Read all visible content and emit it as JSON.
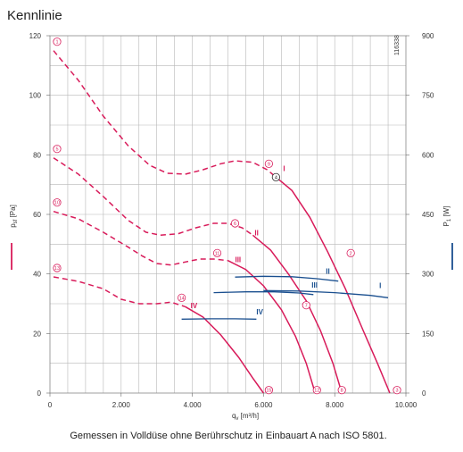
{
  "title": "Kennlinie",
  "caption": "Gemessen in Volldüse ohne Berührschutz in Einbauart A nach ISO 5801.",
  "id_number": "116338",
  "colors": {
    "pressure": "#d81b5a",
    "power": "#1a4f8f",
    "grid": "#b8b8b8",
    "marker": "#d81b5a"
  },
  "chart_data": {
    "type": "line",
    "grid": true,
    "x_axis": {
      "label_main": "q",
      "label_sub": "v",
      "label_unit": "[m³/h]",
      "range": [
        0,
        10000
      ],
      "ticks": [
        0,
        2000,
        4000,
        6000,
        8000,
        10000
      ],
      "tick_labels": [
        "0",
        "2.000",
        "4.000",
        "6.000",
        "8.000",
        "10.000"
      ]
    },
    "y_left": {
      "label_main": "p",
      "label_sub": "sf",
      "label_unit": "[Pa]",
      "range": [
        0,
        120
      ],
      "ticks": [
        0,
        20,
        40,
        60,
        80,
        100,
        120
      ],
      "tick_labels": [
        "0",
        "20",
        "40",
        "60",
        "80",
        "100",
        "120"
      ]
    },
    "y_right": {
      "label_main": "P",
      "label_sub": "1",
      "label_unit": "[W]",
      "range": [
        0,
        900
      ],
      "ticks": [
        0,
        150,
        300,
        450,
        600,
        750,
        900
      ],
      "tick_labels": [
        "0",
        "150",
        "300",
        "450",
        "600",
        "750",
        "900"
      ]
    },
    "pressure_curves": [
      {
        "name": "I",
        "label_x": 6550,
        "label_y": 74.5,
        "dashed": [
          [
            100,
            115
          ],
          [
            800,
            105
          ],
          [
            1500,
            93
          ],
          [
            2200,
            83
          ],
          [
            2800,
            76.5
          ],
          [
            3300,
            73.8
          ],
          [
            3800,
            73.5
          ],
          [
            4300,
            75
          ],
          [
            4800,
            77
          ],
          [
            5200,
            78
          ],
          [
            5700,
            77.5
          ],
          [
            6100,
            75
          ],
          [
            6350,
            72.5
          ]
        ],
        "solid": [
          [
            6350,
            72.5
          ],
          [
            6800,
            68
          ],
          [
            7300,
            59
          ],
          [
            7800,
            47.5
          ],
          [
            8300,
            35
          ],
          [
            8800,
            21
          ],
          [
            9200,
            10
          ],
          [
            9550,
            0
          ]
        ]
      },
      {
        "name": "II",
        "label_x": 5750,
        "label_y": 53,
        "dashed": [
          [
            100,
            79
          ],
          [
            800,
            73.5
          ],
          [
            1500,
            66
          ],
          [
            2200,
            58
          ],
          [
            2700,
            54
          ],
          [
            3100,
            53
          ],
          [
            3600,
            53.5
          ],
          [
            4100,
            55.5
          ],
          [
            4600,
            57
          ],
          [
            5000,
            57
          ],
          [
            5400,
            55.5
          ],
          [
            5700,
            53
          ]
        ],
        "solid": [
          [
            5700,
            53
          ],
          [
            6200,
            48
          ],
          [
            6700,
            40
          ],
          [
            7200,
            31
          ],
          [
            7600,
            21
          ],
          [
            7950,
            10
          ],
          [
            8200,
            0
          ]
        ]
      },
      {
        "name": "III",
        "label_x": 5200,
        "label_y": 44,
        "dashed": [
          [
            100,
            61
          ],
          [
            800,
            58.5
          ],
          [
            1500,
            54
          ],
          [
            2200,
            49
          ],
          [
            2600,
            46
          ],
          [
            3000,
            43.5
          ],
          [
            3400,
            43
          ],
          [
            3800,
            44
          ],
          [
            4200,
            45
          ],
          [
            4600,
            45
          ],
          [
            5000,
            44.5
          ]
        ],
        "solid": [
          [
            5000,
            44.5
          ],
          [
            5500,
            41.5
          ],
          [
            6000,
            36
          ],
          [
            6500,
            28
          ],
          [
            6900,
            19
          ],
          [
            7200,
            10
          ],
          [
            7450,
            0
          ]
        ]
      },
      {
        "name": "IV",
        "label_x": 3950,
        "label_y": 28.5,
        "dashed": [
          [
            100,
            39
          ],
          [
            800,
            37.5
          ],
          [
            1500,
            35
          ],
          [
            2000,
            31.5
          ],
          [
            2500,
            30
          ],
          [
            3000,
            30
          ],
          [
            3400,
            30.5
          ],
          [
            3800,
            29
          ]
        ],
        "solid": [
          [
            3800,
            29
          ],
          [
            4300,
            25.5
          ],
          [
            4800,
            19.5
          ],
          [
            5300,
            12
          ],
          [
            5700,
            5
          ],
          [
            6000,
            0
          ]
        ]
      }
    ],
    "power_curves": [
      {
        "name": "I",
        "points": [
          [
            6000,
            258
          ],
          [
            7000,
            257
          ],
          [
            8000,
            253
          ],
          [
            9000,
            246
          ],
          [
            9500,
            240
          ]
        ]
      },
      {
        "name": "II",
        "points": [
          [
            5200,
            292
          ],
          [
            6000,
            294
          ],
          [
            6800,
            293
          ],
          [
            7500,
            288
          ],
          [
            8100,
            282
          ]
        ]
      },
      {
        "name": "III",
        "points": [
          [
            4600,
            253
          ],
          [
            5500,
            255
          ],
          [
            6300,
            255
          ],
          [
            7000,
            252
          ],
          [
            7400,
            248
          ]
        ]
      },
      {
        "name": "IV",
        "points": [
          [
            3700,
            186
          ],
          [
            4500,
            187
          ],
          [
            5200,
            187
          ],
          [
            5800,
            186
          ]
        ]
      }
    ],
    "power_labels": [
      {
        "name": "I",
        "x": 9250,
        "y": 264
      },
      {
        "name": "II",
        "x": 7750,
        "y": 300
      },
      {
        "name": "III",
        "x": 7350,
        "y": 265
      },
      {
        "name": "IV",
        "x": 5800,
        "y": 198
      }
    ],
    "markers": [
      {
        "label": "1",
        "x": 200,
        "y": 118
      },
      {
        "label": "2",
        "x": 8450,
        "y": 47
      },
      {
        "label": "3",
        "x": 9750,
        "y": 1
      },
      {
        "label": "4",
        "x": 6350,
        "y": 72.5,
        "type": "black"
      },
      {
        "label": "5",
        "x": 200,
        "y": 82
      },
      {
        "label": "6",
        "x": 5200,
        "y": 57
      },
      {
        "label": "7",
        "x": 7200,
        "y": 29.5
      },
      {
        "label": "8",
        "x": 8200,
        "y": 1
      },
      {
        "label": "9",
        "x": 6150,
        "y": 77
      },
      {
        "label": "10",
        "x": 200,
        "y": 64
      },
      {
        "label": "11",
        "x": 4700,
        "y": 47
      },
      {
        "label": "12",
        "x": 7500,
        "y": 1
      },
      {
        "label": "13",
        "x": 200,
        "y": 42
      },
      {
        "label": "14",
        "x": 3700,
        "y": 32
      },
      {
        "label": "15",
        "x": 6150,
        "y": 1
      }
    ]
  }
}
